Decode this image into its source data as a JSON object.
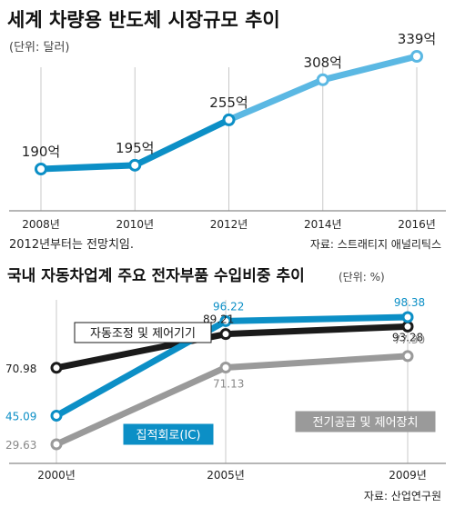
{
  "colors": {
    "accent_blue": "#0c8fc6",
    "light_blue": "#5bb8e3",
    "black": "#1a1a1a",
    "gray": "#9a9a9a"
  },
  "chart_data": [
    {
      "type": "line",
      "title": "세계 차량용 반도체 시장규모 추이",
      "subtitle": "(단위: 달러)",
      "x": [
        "2008년",
        "2010년",
        "2012년",
        "2014년",
        "2016년"
      ],
      "series": [
        {
          "name": "",
          "values": [
            190,
            195,
            255,
            308,
            339
          ]
        }
      ],
      "value_labels": [
        "190억",
        "195억",
        "255억",
        "308억",
        "339억"
      ],
      "forecast_from": "2012년",
      "ylim": [
        150,
        360
      ],
      "grid": true,
      "note": "2012년부터는 전망치임.",
      "source": "자료: 스트래티지 애널리틱스"
    },
    {
      "type": "line",
      "title": "국내 자동차업계 주요 전자부품 수입비중 추이",
      "subtitle": "(단위: %)",
      "x": [
        "2000년",
        "2005년",
        "2009년"
      ],
      "series": [
        {
          "name": "자동조정 및 제어기기",
          "values": [
            70.98,
            89.21,
            93.28
          ]
        },
        {
          "name": "집적회로(IC)",
          "values": [
            45.09,
            96.22,
            98.38
          ]
        },
        {
          "name": "전기공급 및 제어장치",
          "values": [
            29.63,
            71.13,
            77.3
          ]
        }
      ],
      "value_labels": [
        [
          "70.98",
          "89.21",
          "93.28"
        ],
        [
          "45.09",
          "96.22",
          "98.38"
        ],
        [
          "29.63",
          "71.13",
          "77.30"
        ]
      ],
      "ylim": [
        20,
        110
      ],
      "grid": true,
      "source": "자료: 산업연구원"
    }
  ]
}
